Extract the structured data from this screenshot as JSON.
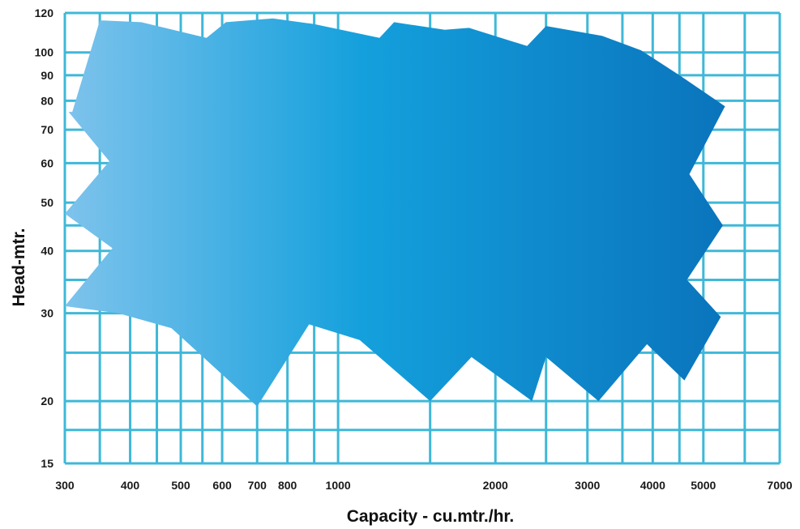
{
  "chart_data": {
    "type": "area",
    "title": "",
    "xlabel": "Capacity - cu.mtr./hr.",
    "ylabel": "Head-mtr.",
    "x_scale": "log",
    "y_scale": "log",
    "xlim": [
      300,
      7000
    ],
    "ylim": [
      15,
      120
    ],
    "x_ticks": [
      300,
      400,
      500,
      600,
      700,
      800,
      1000,
      2000,
      3000,
      4000,
      5000,
      7000
    ],
    "x_tick_labels": [
      "300",
      "400",
      "500",
      "600",
      "700",
      "800",
      "1000",
      "2000",
      "3000",
      "4000",
      "5000",
      "7000"
    ],
    "y_ticks": [
      15,
      20,
      30,
      40,
      50,
      60,
      70,
      80,
      90,
      100,
      120
    ],
    "y_tick_labels": [
      "15",
      "20",
      "30",
      "40",
      "50",
      "60",
      "70",
      "80",
      "90",
      "100",
      "120"
    ],
    "grid": true,
    "colors": {
      "grid": "#3fb8d8",
      "fill_light": "#7ec3ec",
      "fill_mid": "#14a0dc",
      "fill_dark": "#0a74bc"
    },
    "coverage_outline": [
      [
        310,
        76
      ],
      [
        350,
        116
      ],
      [
        420,
        115
      ],
      [
        560,
        107
      ],
      [
        610,
        115
      ],
      [
        750,
        117
      ],
      [
        900,
        114
      ],
      [
        1200,
        107
      ],
      [
        1280,
        115
      ],
      [
        1600,
        111
      ],
      [
        1780,
        112
      ],
      [
        2300,
        103
      ],
      [
        2500,
        113
      ],
      [
        3200,
        108
      ],
      [
        3800,
        101
      ],
      [
        4500,
        90
      ],
      [
        5500,
        78
      ],
      [
        4700,
        57
      ],
      [
        5450,
        45
      ],
      [
        4650,
        35
      ],
      [
        5400,
        29.5
      ],
      [
        4600,
        22
      ],
      [
        3900,
        26
      ],
      [
        3150,
        20
      ],
      [
        2500,
        24.5
      ],
      [
        2350,
        20
      ],
      [
        1800,
        24.5
      ],
      [
        1500,
        20
      ],
      [
        1100,
        26.5
      ],
      [
        880,
        28.5
      ],
      [
        700,
        19.5
      ],
      [
        480,
        28
      ],
      [
        380,
        30
      ],
      [
        300,
        31
      ],
      [
        370,
        40.5
      ],
      [
        300,
        47.5
      ],
      [
        365,
        60.5
      ],
      [
        305,
        76
      ]
    ]
  }
}
